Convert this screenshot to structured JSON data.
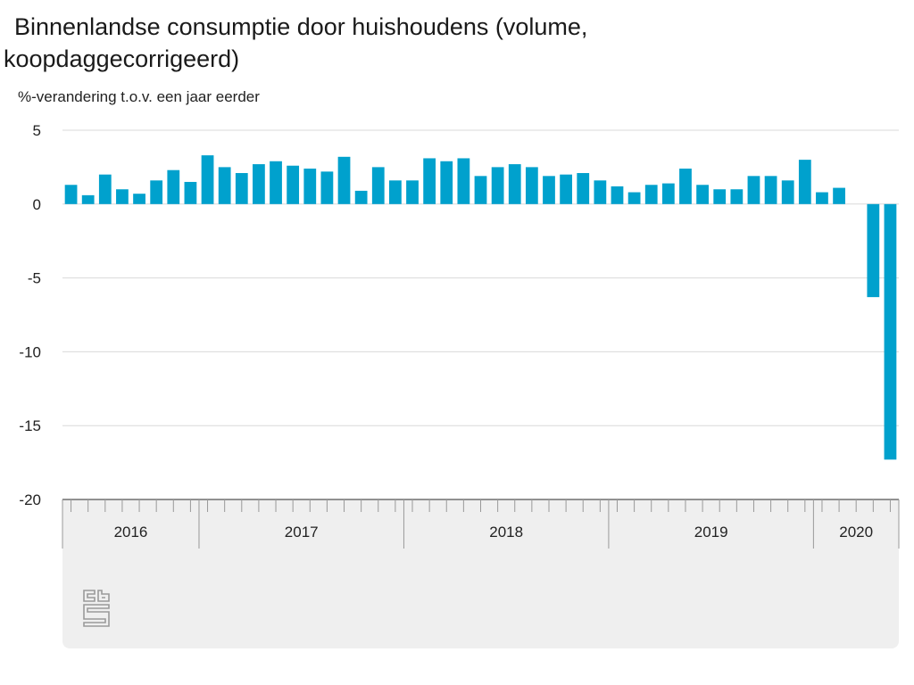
{
  "title": "Binnenlandse consumptie door huishoudens (volume, koopdaggecorrigeerd)",
  "title_line1": "Binnenlandse consumptie door huishoudens (volume,",
  "title_line2": "koopdaggecorrigeerd)",
  "bar_color": "#00a1cd",
  "logo_icon": "cbs-logo-icon",
  "chart_data": {
    "type": "bar",
    "ylabel": "%-verandering t.o.v. een jaar eerder",
    "ylim": [
      -20,
      5
    ],
    "yticks": [
      5,
      0,
      -5,
      -10,
      -15,
      -20
    ],
    "grid": true,
    "year_labels": [
      "2016",
      "2017",
      "2018",
      "2019",
      "2020"
    ],
    "year_month_counts": [
      8,
      12,
      12,
      12,
      5
    ],
    "values": [
      1.3,
      0.6,
      2.0,
      1.0,
      0.7,
      1.6,
      2.3,
      1.5,
      3.3,
      2.5,
      2.1,
      2.7,
      2.9,
      2.6,
      2.4,
      2.2,
      3.2,
      0.9,
      2.5,
      1.6,
      1.6,
      3.1,
      2.9,
      3.1,
      1.9,
      2.5,
      2.7,
      2.5,
      1.9,
      2.0,
      2.1,
      1.6,
      1.2,
      0.8,
      1.3,
      1.4,
      2.4,
      1.3,
      1.0,
      1.0,
      1.9,
      1.9,
      1.6,
      3.0,
      0.8,
      1.1,
      0.0,
      -6.3,
      -17.3
    ]
  }
}
